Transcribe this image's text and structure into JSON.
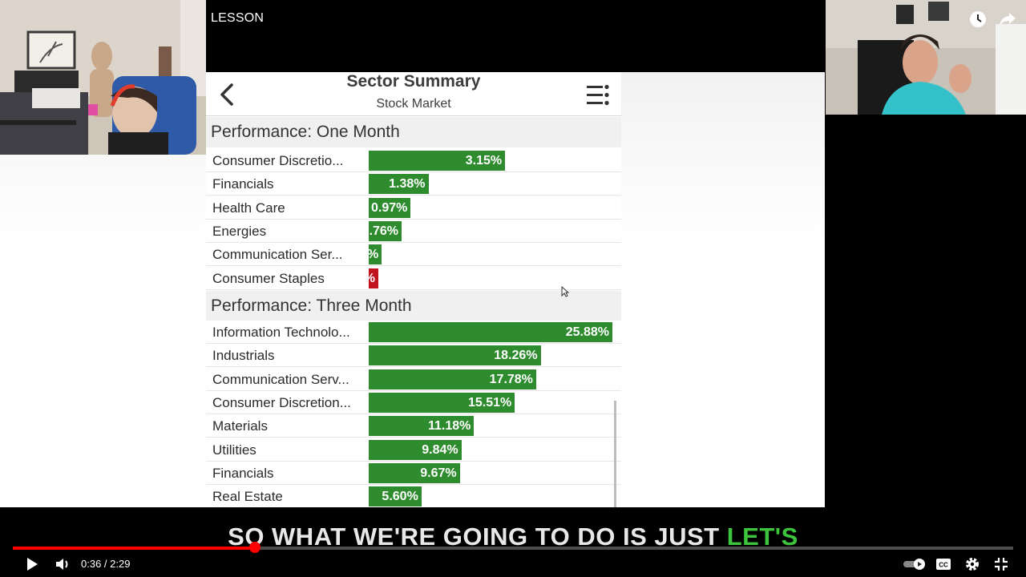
{
  "video": {
    "overlay_title": "LESSON",
    "caption_main": "SO WHAT WE'RE GOING TO DO IS JUST",
    "caption_highlight": "LET'S"
  },
  "app": {
    "title": "Sector Summary",
    "subtitle": "Stock Market",
    "sections": [
      {
        "heading": "Performance: One Month",
        "rows": [
          {
            "label": "Consumer Discretio...",
            "value": "3.15%",
            "num": 3.15
          },
          {
            "label": "Financials",
            "value": "1.38%",
            "num": 1.38
          },
          {
            "label": "Health Care",
            "value": "0.97%",
            "num": 0.97
          },
          {
            "label": "Energies",
            "value": ".76%",
            "num": 0.76
          },
          {
            "label": "Communication Ser...",
            "value": "%",
            "num": 0.3
          },
          {
            "label": "Consumer Staples",
            "value": "%",
            "num": -0.2
          }
        ]
      },
      {
        "heading": "Performance: Three Month",
        "rows": [
          {
            "label": "Information Technolo...",
            "value": "25.88%",
            "num": 25.88
          },
          {
            "label": "Industrials",
            "value": "18.26%",
            "num": 18.26
          },
          {
            "label": "Communication Serv...",
            "value": "17.78%",
            "num": 17.78
          },
          {
            "label": "Consumer Discretion...",
            "value": "15.51%",
            "num": 15.51
          },
          {
            "label": "Materials",
            "value": "11.18%",
            "num": 11.18
          },
          {
            "label": "Utilities",
            "value": "9.84%",
            "num": 9.84
          },
          {
            "label": "Financials",
            "value": "9.67%",
            "num": 9.67
          },
          {
            "label": "Real Estate",
            "value": "5.60%",
            "num": 5.6
          }
        ]
      }
    ]
  },
  "player": {
    "current_time": "0:36",
    "duration": "2:29",
    "time_display": "0:36 / 2:29",
    "progress_fraction": 0.2416,
    "icons": {
      "play": "play-icon",
      "volume": "volume-icon",
      "autoplay": "autoplay-toggle-icon",
      "captions": "captions-icon",
      "settings": "gear-icon",
      "fullscreen": "exit-fullscreen-icon",
      "watch_later": "clock-icon",
      "share": "share-icon"
    },
    "colors": {
      "progress": "#ff0000",
      "bar_positive": "#2e8b2e",
      "bar_negative": "#c1121f",
      "caption_highlight": "#3cc43c"
    }
  }
}
